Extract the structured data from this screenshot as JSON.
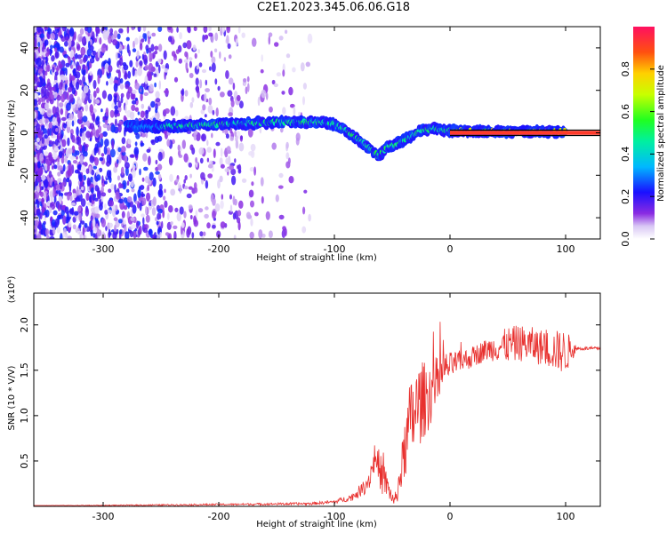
{
  "title": "C2E1.2023.345.06.06.G18",
  "colors": {
    "snr_line": "#e8302e",
    "doppler_line": "#000000",
    "background": "#ffffff"
  },
  "chart_data": [
    {
      "type": "heatmap",
      "name": "spectrogram",
      "xlabel": "Height of straight line (km)",
      "ylabel": "Frequency (Hz)",
      "xlim": [
        -360,
        130
      ],
      "ylim": [
        -50,
        50
      ],
      "xticks": [
        -300,
        -200,
        -100,
        0,
        100
      ],
      "yticks": [
        -40,
        -20,
        0,
        20,
        40
      ],
      "colorbar": {
        "label": "Normalized spectral amplitude",
        "range": [
          0.0,
          1.0
        ],
        "ticks": [
          "0.0",
          "0.2",
          "0.4",
          "0.6",
          "0.8"
        ],
        "tick_values": [
          0.0,
          0.2,
          0.4,
          0.6,
          0.8
        ]
      },
      "ridge": {
        "x": [
          -270,
          -250,
          -200,
          -150,
          -110,
          -100,
          -90,
          -80,
          -70,
          -62,
          -55,
          -45,
          -35,
          -25,
          -15,
          0,
          50,
          100
        ],
        "y": [
          3,
          3,
          4,
          5,
          5,
          4,
          1,
          -3,
          -7,
          -11,
          -7,
          -5,
          -2,
          1,
          2,
          1,
          0.5,
          0.5
        ]
      },
      "reference_line": {
        "x": [
          0,
          130
        ],
        "y": [
          0,
          0
        ]
      }
    },
    {
      "type": "line",
      "name": "snr",
      "xlabel": "Height of straight line (km)",
      "ylabel": "SNR (10 * V/V)",
      "y_multiplier": "(x10⁴)",
      "xlim": [
        -360,
        130
      ],
      "ylim": [
        0,
        2.35
      ],
      "xticks": [
        -300,
        -200,
        -100,
        0,
        100
      ],
      "yticks": [
        "0.5",
        "1.0",
        "1.5",
        "2.0"
      ],
      "ytick_values": [
        0.5,
        1.0,
        1.5,
        2.0
      ],
      "series": [
        {
          "name": "SNR",
          "x": [
            -360,
            -300,
            -200,
            -120,
            -100,
            -85,
            -75,
            -70,
            -65,
            -62,
            -58,
            -55,
            -52,
            -48,
            -45,
            -40,
            -35,
            -30,
            -25,
            -20,
            -15,
            -10,
            -5,
            0,
            10,
            20,
            30,
            40,
            50,
            60,
            70,
            80,
            90,
            100,
            110,
            130
          ],
          "y": [
            0.01,
            0.01,
            0.02,
            0.03,
            0.05,
            0.1,
            0.2,
            0.3,
            0.55,
            0.45,
            0.3,
            0.25,
            0.15,
            0.05,
            0.2,
            0.55,
            0.9,
            1.05,
            1.15,
            1.2,
            1.3,
            1.4,
            1.5,
            1.55,
            1.6,
            1.65,
            1.72,
            1.75,
            1.78,
            1.8,
            1.78,
            1.75,
            1.72,
            1.7,
            1.74,
            1.74
          ],
          "noise": [
            0.0,
            0.005,
            0.01,
            0.015,
            0.02,
            0.04,
            0.08,
            0.12,
            0.18,
            0.2,
            0.2,
            0.15,
            0.1,
            0.05,
            0.15,
            0.3,
            0.45,
            0.5,
            0.45,
            0.4,
            0.35,
            0.25,
            0.2,
            0.15,
            0.12,
            0.12,
            0.12,
            0.15,
            0.2,
            0.2,
            0.2,
            0.2,
            0.22,
            0.25,
            0.02,
            0.02
          ]
        }
      ]
    }
  ]
}
